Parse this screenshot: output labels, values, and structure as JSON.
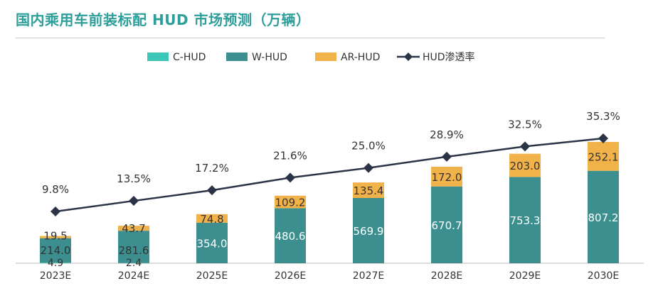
{
  "title": "国内乘用车前装标配 HUD 市场预测（万辆）",
  "colors": {
    "title": "#2e9e9a",
    "c_hud": "#3cc6b8",
    "w_hud": "#3d8f8f",
    "ar_hud": "#f2b24a",
    "line": "#2b3447",
    "text": "#333333"
  },
  "chart_data": {
    "type": "bar",
    "stacked": true,
    "categories": [
      "2023E",
      "2024E",
      "2025E",
      "2026E",
      "2027E",
      "2028E",
      "2029E",
      "2030E"
    ],
    "series": [
      {
        "name": "C-HUD",
        "values": [
          4.9,
          2.4,
          null,
          null,
          null,
          null,
          null,
          null
        ]
      },
      {
        "name": "W-HUD",
        "values": [
          214.0,
          281.6,
          354.0,
          480.6,
          569.9,
          670.7,
          753.3,
          807.2
        ]
      },
      {
        "name": "AR-HUD",
        "values": [
          19.5,
          43.7,
          74.8,
          109.2,
          135.4,
          172.0,
          203.0,
          252.1
        ]
      }
    ],
    "line_series": {
      "name": "HUD渗透率",
      "values": [
        9.8,
        13.5,
        17.2,
        21.6,
        25.0,
        28.9,
        32.5,
        35.3
      ],
      "labels": [
        "9.8%",
        "13.5%",
        "17.2%",
        "21.6%",
        "25.0%",
        "28.9%",
        "32.5%",
        "35.3%"
      ]
    },
    "bar_labels": {
      "C-HUD": [
        "4.9",
        "2.4",
        "",
        "",
        "",
        "",
        "",
        ""
      ],
      "W-HUD": [
        "214.0",
        "281.6",
        "354.0",
        "480.6",
        "569.9",
        "670.7",
        "753.3",
        "807.2"
      ],
      "AR-HUD": [
        "19.5",
        "43.7",
        "74.8",
        "109.2",
        "135.4",
        "172.0",
        "203.0",
        "252.1"
      ]
    },
    "legend_position": "top-center",
    "grid": false
  }
}
